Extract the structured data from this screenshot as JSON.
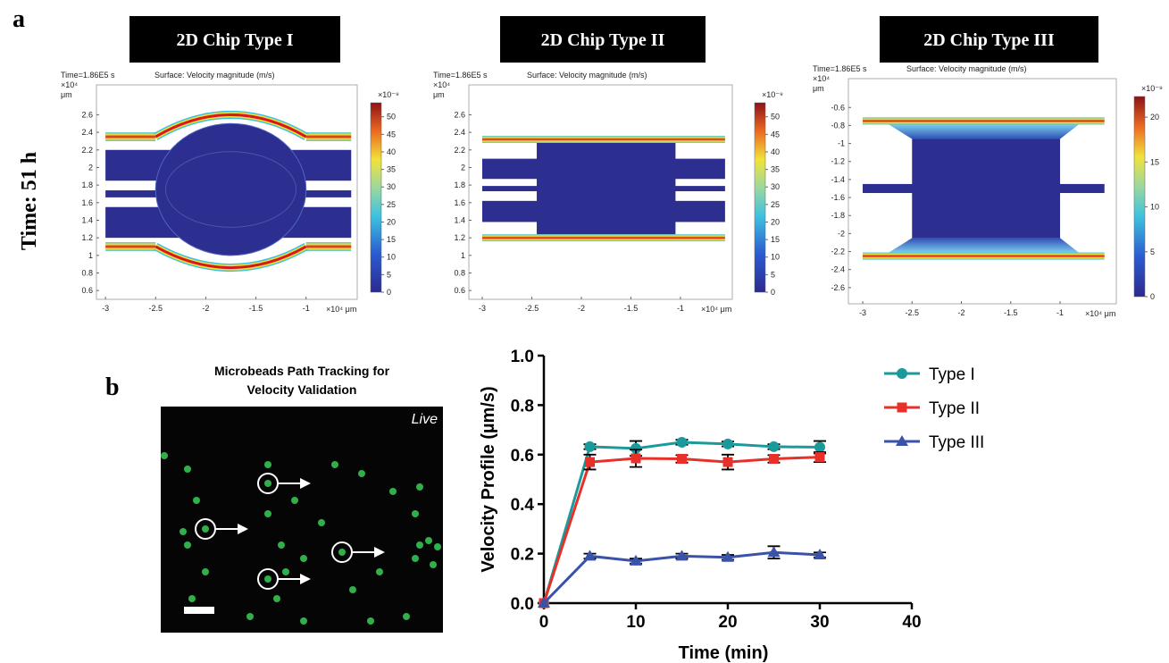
{
  "panel_a": {
    "label": "a",
    "side_label": "Time: 51 h",
    "simulations": [
      {
        "title": "2D Chip Type I",
        "time": "Time=1.86E5 s",
        "surface": "Surface: Velocity magnitude (m/s)",
        "y_exp": "×10⁴",
        "y_unit": "μm",
        "x_unit": "×10⁴ μm",
        "cb_exp": "×10⁻⁹",
        "xlim": [
          -3.09,
          -0.49
        ],
        "xticks": [
          -3,
          -2.5,
          -2,
          -1.5,
          -1
        ],
        "ylim": [
          0.5,
          2.94
        ],
        "yticks": [
          0.6,
          0.8,
          1,
          1.2,
          1.4,
          1.6,
          1.8,
          2,
          2.2,
          2.4,
          2.6
        ],
        "cblim": [
          0,
          54
        ],
        "cbticks": [
          0,
          5,
          10,
          15,
          20,
          25,
          30,
          35,
          40,
          45,
          50
        ]
      },
      {
        "title": "2D Chip Type II",
        "time": "Time=1.86E5 s",
        "surface": "Surface: Velocity magnitude (m/s)",
        "y_exp": "×10⁴",
        "y_unit": "μm",
        "x_unit": "×10⁴ μm",
        "cb_exp": "×10⁻⁹",
        "xlim": [
          -3.135,
          -0.477
        ],
        "xticks": [
          -3,
          -2.5,
          -2,
          -1.5,
          -1
        ],
        "ylim": [
          0.5,
          2.94
        ],
        "yticks": [
          0.6,
          0.8,
          1,
          1.2,
          1.4,
          1.6,
          1.8,
          2,
          2.2,
          2.4,
          2.6
        ],
        "cblim": [
          0,
          54
        ],
        "cbticks": [
          0,
          5,
          10,
          15,
          20,
          25,
          30,
          35,
          40,
          45,
          50
        ]
      },
      {
        "title": "2D Chip Type III",
        "time": "Time=1.86E5 s",
        "surface": "Surface: Velocity magnitude (m/s)",
        "y_exp": "×10⁴",
        "y_unit": "μm",
        "x_unit": "×10⁴ μm",
        "cb_exp": "×10⁻⁹",
        "xlim": [
          -3.145,
          -0.43
        ],
        "xticks": [
          -3,
          -2.5,
          -2,
          -1.5,
          -1
        ],
        "ylim": [
          -2.78,
          -0.28
        ],
        "yticks": [
          -2.6,
          -2.4,
          -2.2,
          -2,
          -1.8,
          -1.6,
          -1.4,
          -1.2,
          -1,
          -0.8,
          -0.6
        ],
        "cblim": [
          0,
          22.3
        ],
        "cbticks": [
          0,
          5,
          10,
          15,
          20
        ]
      }
    ]
  },
  "panel_b": {
    "label": "b",
    "image_title_lines": [
      "Microbeads Path Tracking for",
      "Velocity Validation"
    ],
    "image_tag": "Live"
  },
  "chart_data": {
    "type": "line",
    "xlabel": "Time (min)",
    "ylabel": "Velocity Profile (µm/s)",
    "x": [
      0,
      5,
      10,
      15,
      20,
      25,
      30
    ],
    "xlim": [
      0,
      40
    ],
    "xticks": [
      0,
      10,
      20,
      30,
      40
    ],
    "ylim": [
      0,
      1
    ],
    "yticks": [
      {
        "value": 0,
        "label": "0.0"
      },
      {
        "value": 0.2,
        "label": "0.2"
      },
      {
        "value": 0.4,
        "label": "0.4"
      },
      {
        "value": 0.6,
        "label": "0.6"
      },
      {
        "value": 0.8,
        "label": "0.8"
      },
      {
        "value": 1,
        "label": "1.0"
      }
    ],
    "series": [
      {
        "name": "Type I",
        "color": "#1b9a9c",
        "marker": "circle",
        "values": [
          0,
          0.632,
          0.625,
          0.65,
          0.643,
          0.632,
          0.63
        ],
        "errors": [
          0,
          0.01,
          0.03,
          0.01,
          0.01,
          0.01,
          0.025
        ]
      },
      {
        "name": "Type II",
        "color": "#e8302a",
        "marker": "square",
        "values": [
          0,
          0.57,
          0.585,
          0.583,
          0.57,
          0.583,
          0.59
        ],
        "errors": [
          0,
          0.03,
          0.035,
          0.015,
          0.03,
          0.015,
          0.02
        ]
      },
      {
        "name": "Type III",
        "color": "#3a52a8",
        "marker": "triangle",
        "values": [
          0,
          0.19,
          0.17,
          0.19,
          0.185,
          0.205,
          0.195
        ],
        "errors": [
          0,
          0.01,
          0.01,
          0.01,
          0.01,
          0.025,
          0.01
        ]
      }
    ]
  }
}
